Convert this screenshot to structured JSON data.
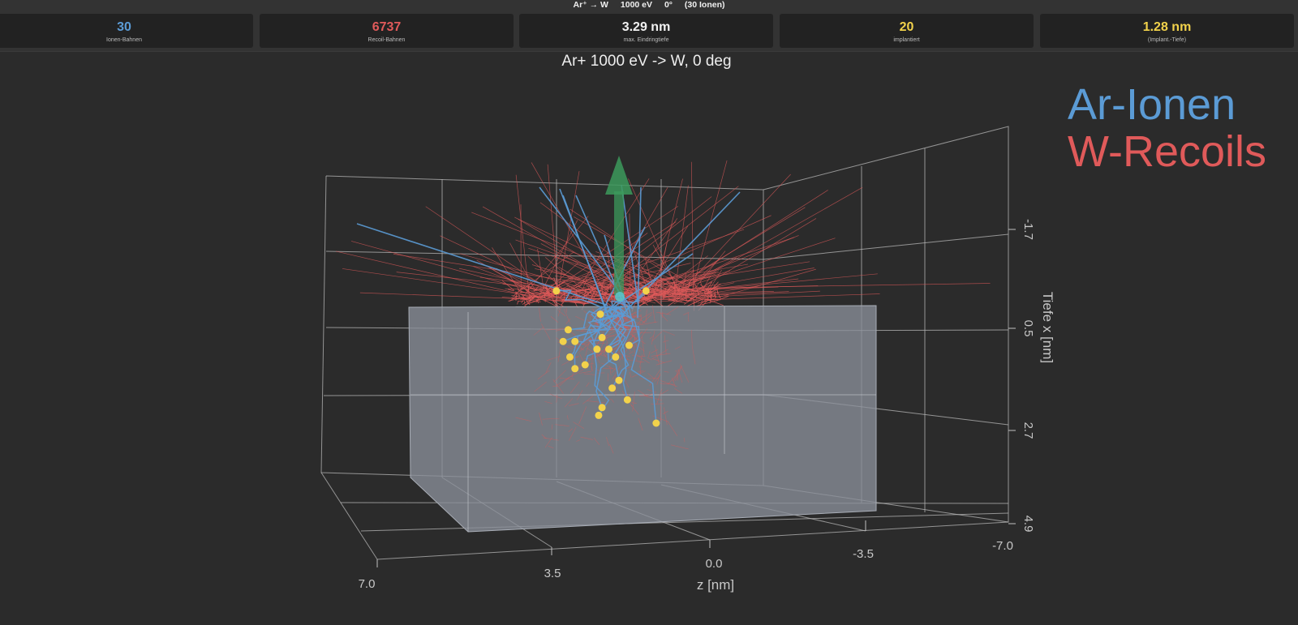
{
  "header": {
    "reaction": "Ar⁺ → W",
    "energy": "1000 eV",
    "angle": "0°",
    "ion_count": "(30 Ionen)"
  },
  "stats": [
    {
      "value": "30",
      "label": "Ionen-Bahnen",
      "color": "#5b9bd5"
    },
    {
      "value": "6737",
      "label": "Recoil-Bahnen",
      "color": "#e05a5a"
    },
    {
      "value": "3.29 nm",
      "label": "max. Eindringtiefe",
      "color": "#f2f2f2"
    },
    {
      "value": "20",
      "label": "implantiert",
      "color": "#f2d24b"
    },
    {
      "value": "1.28 nm",
      "label": "(Implant.-Tiefe)",
      "color": "#f2d24b"
    }
  ],
  "legend": [
    {
      "label": "Ar-Ionen",
      "color": "#5b9bd5"
    },
    {
      "label": "W-Recoils",
      "color": "#e05a5a"
    }
  ],
  "chart_data": {
    "type": "scatter",
    "title": "Ar+ 1000 eV -> W, 0 deg",
    "xlabel": "z [nm]",
    "ylabel": "Tiefe x [nm]",
    "z_ticks": [
      "7.0",
      "3.5",
      "0.0",
      "-3.5",
      "-7.0"
    ],
    "depth_ticks": [
      "-1.7",
      "0.5",
      "2.7",
      "4.9"
    ],
    "zlim": [
      7.0,
      -7.0
    ],
    "depth_lim": [
      -3.9,
      4.9
    ],
    "grid": true,
    "legend_position": "top-right",
    "colors": {
      "ions": "#5b9bd5",
      "recoils": "#e05a5a",
      "implanted": "#f2d24b",
      "target": "#8a909a",
      "beam": "#3c9a5c"
    },
    "series": [
      {
        "name": "Ar-Ionen",
        "points": [
          {
            "z": 2.45,
            "depth": -0.4
          },
          {
            "z": 1.15,
            "depth": 0.2
          },
          {
            "z": 1.25,
            "depth": 1.1
          },
          {
            "z": 2.1,
            "depth": 0.6
          },
          {
            "z": 2.05,
            "depth": 1.3
          },
          {
            "z": 1.9,
            "depth": 0.9
          },
          {
            "z": 2.25,
            "depth": 0.9
          },
          {
            "z": 1.6,
            "depth": 1.5
          },
          {
            "z": 1.9,
            "depth": 1.6
          },
          {
            "z": 0.3,
            "depth": 1.0
          },
          {
            "z": 0.8,
            "depth": 2.1
          },
          {
            "z": 0.35,
            "depth": 2.4
          },
          {
            "z": 0.9,
            "depth": 1.1
          },
          {
            "z": 1.2,
            "depth": 2.8
          },
          {
            "z": 1.1,
            "depth": 0.8
          },
          {
            "z": -0.2,
            "depth": -0.4
          },
          {
            "z": 0.7,
            "depth": 1.3
          },
          {
            "z": -0.5,
            "depth": 3.0
          },
          {
            "z": 1.1,
            "depth": 2.6
          },
          {
            "z": 0.6,
            "depth": 1.9
          }
        ]
      }
    ]
  }
}
